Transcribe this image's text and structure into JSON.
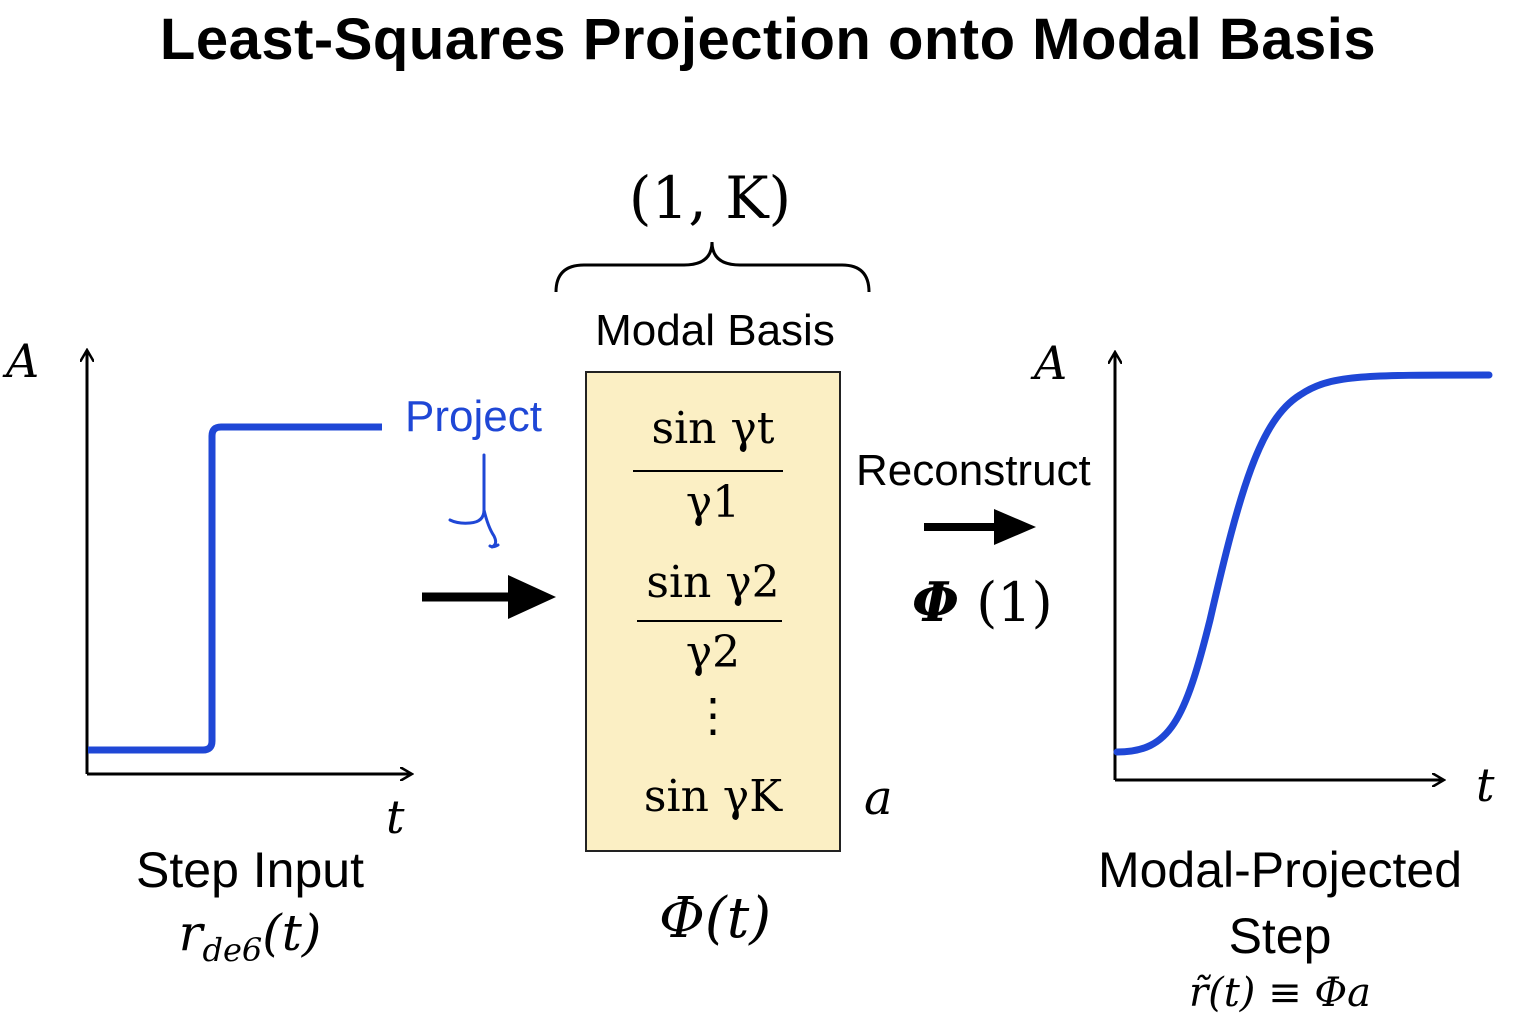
{
  "title": "Least-Squares Projection onto Modal Basis",
  "colors": {
    "signal": "#1f47d6",
    "basis_fill": "#fbefc4",
    "axis": "#000000"
  },
  "left_plot": {
    "y_axis_label": "A",
    "x_axis_label": "t",
    "caption": "Step Input",
    "symbol": "r_de6(t)",
    "symbol_main": "r",
    "symbol_sub": "de6",
    "symbol_arg": "(t)"
  },
  "project_label": "Project",
  "modal_basis": {
    "dimension": "(1, K)",
    "title": "Modal Basis",
    "rows": [
      {
        "numerator": "sin γt",
        "denominator": "γ1"
      },
      {
        "numerator": "sin γ2",
        "denominator": "γ2"
      }
    ],
    "ellipsis": "⋮",
    "last_row": "sin γK",
    "coefficient": "a",
    "symbol": "Φ(t)"
  },
  "reconstruct_label": "Reconstruct",
  "reconstruct_symbol": "Φ",
  "reconstruct_arg": "(1)",
  "right_plot": {
    "y_axis_label": "A",
    "x_axis_label": "t",
    "caption_line1": "Modal-Projected",
    "caption_line2": "Step",
    "equation": "r̃(t) ≡ Φa"
  }
}
